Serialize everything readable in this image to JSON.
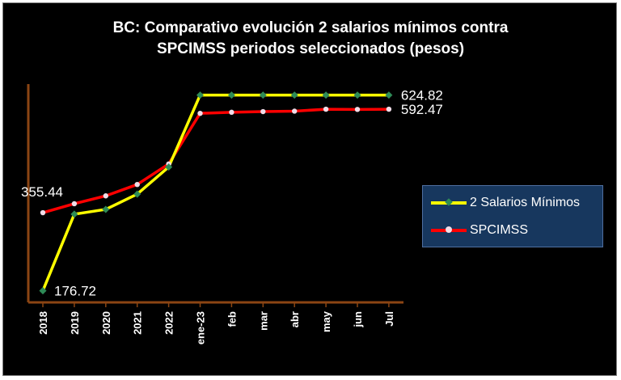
{
  "chart_data": {
    "type": "line",
    "title_line1": "BC: Comparativo  evolución 2 salarios mínimos contra",
    "title_line2": "SPCIMSS periodos seleccionados (pesos)",
    "categories": [
      "2018",
      "2019",
      "2020",
      "2021",
      "2022",
      "ene-23",
      "feb",
      "mar",
      "abr",
      "may",
      "jun",
      "Jul"
    ],
    "ylim": [
      150,
      650
    ],
    "series": [
      {
        "name": "2 Salarios Mínimos",
        "color": "#ffff00",
        "marker_color": "#2e8b57",
        "values": [
          176.72,
          352,
          363,
          398,
          460,
          624.82,
          624.82,
          624.82,
          624.82,
          624.82,
          624.82,
          624.82
        ]
      },
      {
        "name": "SPCIMSS",
        "color": "#ff0000",
        "marker_color": "#f0dde8",
        "values": [
          355.44,
          376,
          394,
          420,
          467,
          583,
          585.5,
          587,
          588,
          592.47,
          592,
          592.47
        ]
      }
    ],
    "data_labels": [
      {
        "text": "355.44",
        "series": 1,
        "index": 0
      },
      {
        "text": "176.72",
        "series": 0,
        "index": 0
      },
      {
        "text": "624.82",
        "series": 0,
        "index": 11
      },
      {
        "text": "592.47",
        "series": 1,
        "index": 11
      }
    ],
    "legend": "right"
  }
}
